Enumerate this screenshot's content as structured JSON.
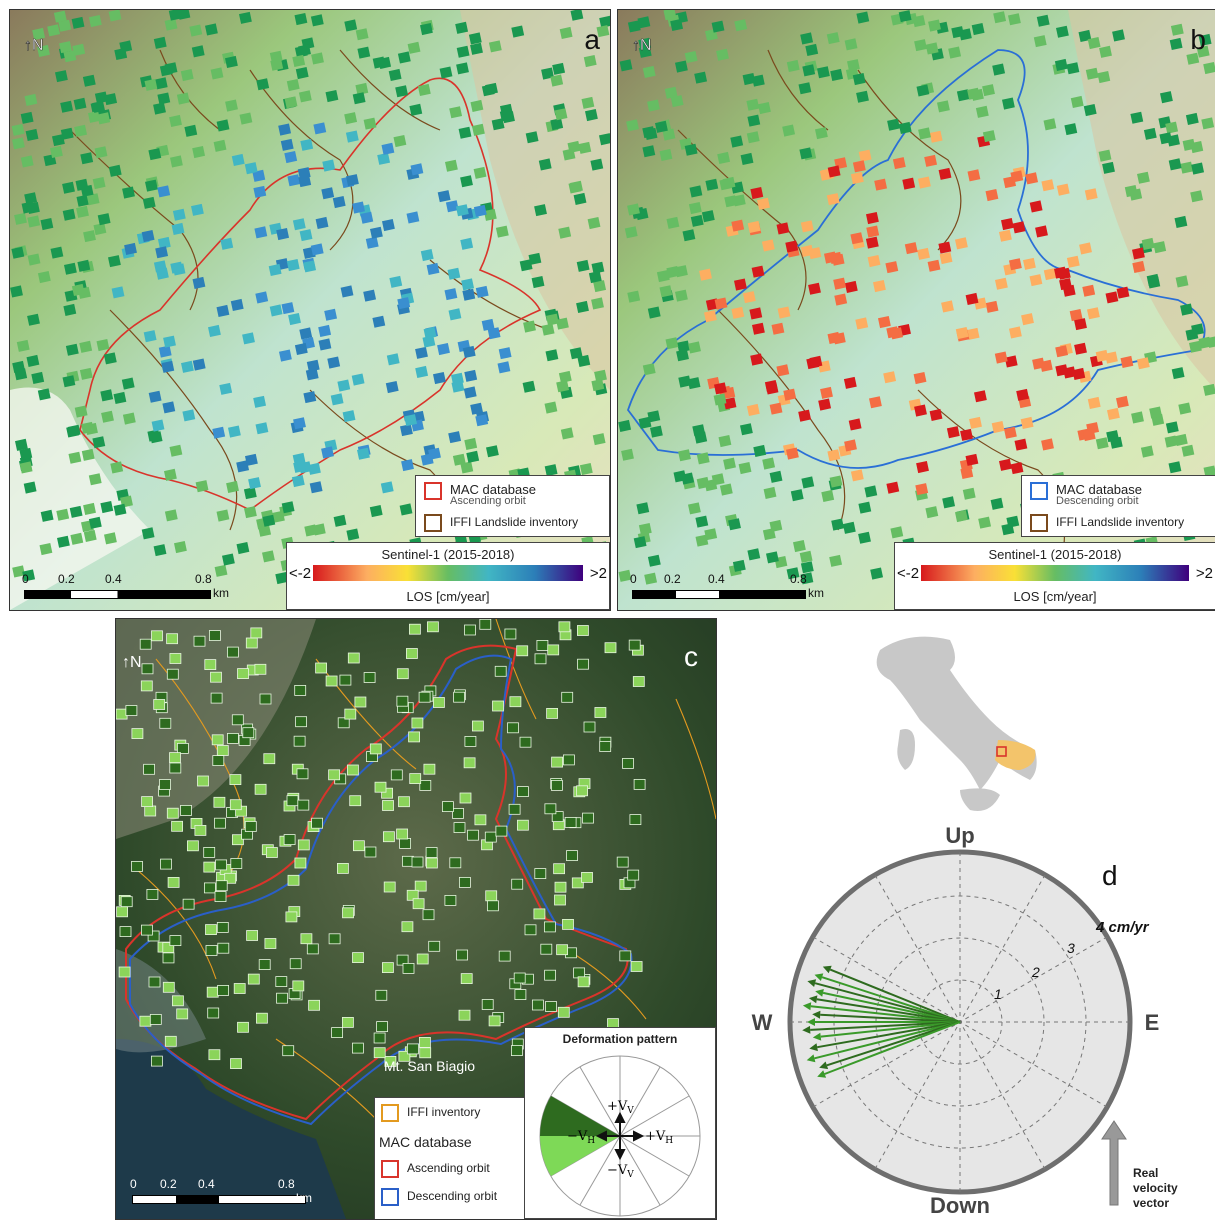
{
  "panels": {
    "a": {
      "letter": "a",
      "legend": {
        "mac_title": "MAC database",
        "mac_sub": "Ascending orbit",
        "mac_color": "#d9342b",
        "iffi_label": "IFFI Landslide inventory",
        "iffi_color": "#7a4a1d"
      },
      "colorbar": {
        "title": "Sentinel-1 (2015-2018)",
        "min_label": "<-2",
        "max_label": ">2",
        "unit": "LOS [cm/year]"
      },
      "scale": {
        "ticks": [
          "0",
          "0.2",
          "0.4",
          "0.8"
        ],
        "unit": "km"
      }
    },
    "b": {
      "letter": "b",
      "legend": {
        "mac_title": "MAC database",
        "mac_sub": "Descending orbit",
        "mac_color": "#2a6fd6",
        "iffi_label": "IFFI Landslide inventory",
        "iffi_color": "#7a4a1d"
      },
      "colorbar": {
        "title": "Sentinel-1 (2015-2018)",
        "min_label": "<-2",
        "max_label": ">2",
        "unit": "LOS [cm/year]"
      },
      "scale": {
        "ticks": [
          "0",
          "0.2",
          "0.4",
          "0.8"
        ],
        "unit": "km"
      }
    },
    "c": {
      "letter": "c",
      "place_label": "Mt. San Biagio",
      "legend": {
        "iffi_label": "IFFI inventory",
        "iffi_color": "#e39a1f",
        "mac_header": "MAC database",
        "asc_label": "Ascending orbit",
        "asc_color": "#d9342b",
        "desc_label": "Descending orbit",
        "desc_color": "#2a5fc8"
      },
      "deformation": {
        "title": "Deformation pattern",
        "plus_vv": "+V",
        "minus_vv": "−V",
        "plus_vh": "+V",
        "minus_vh": "−V",
        "sub_v": "V",
        "sub_h": "H"
      },
      "scale": {
        "ticks": [
          "0",
          "0.2",
          "0.4",
          "0.8"
        ],
        "unit": "km"
      }
    },
    "d": {
      "letter": "d",
      "up": "Up",
      "down": "Down",
      "west": "W",
      "east": "E",
      "ring_labels": [
        "1",
        "2",
        "3"
      ],
      "outer_label": "4 cm/yr",
      "arrow_color": "#3a9a2a",
      "vector_label": [
        "Real",
        "velocity",
        "vector"
      ]
    }
  },
  "colors": {
    "ramp": [
      "#d7191c",
      "#f46d43",
      "#fdae61",
      "#f9e036",
      "#66bd63",
      "#1a9850",
      "#41b6c4",
      "#2c7fb8",
      "#3f007d"
    ],
    "inset_highlight": "#f3c46b"
  }
}
